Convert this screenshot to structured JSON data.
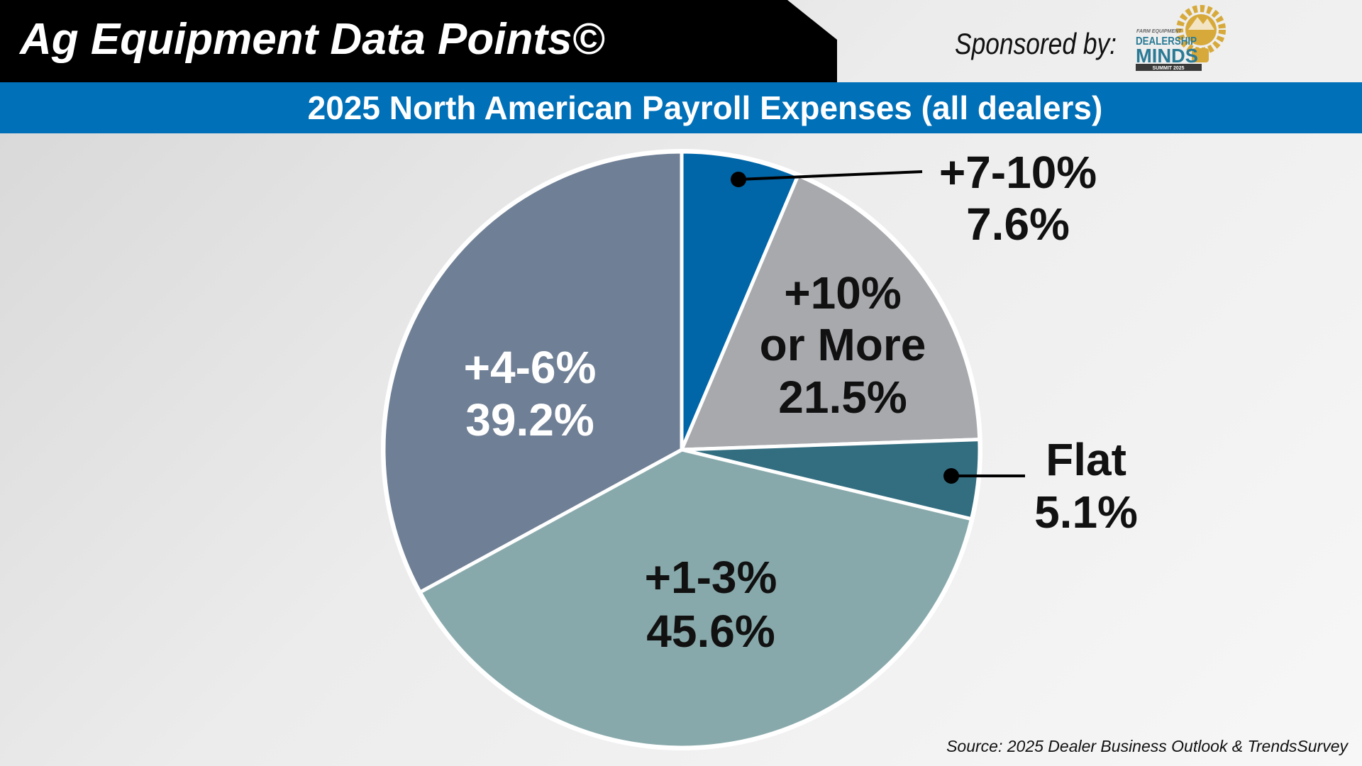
{
  "header": {
    "title": "Ag Equipment Data Points©",
    "sponsored_by": "Sponsored by:",
    "sponsor_logo": {
      "line1": "FARM EQUIPMENT",
      "line2": "DEALERSHIP",
      "line3": "MINDS",
      "line4": "SUMMIT 2025"
    }
  },
  "colors": {
    "header_black": "#000000",
    "banner_blue": "#0070b8"
  },
  "chart_data": {
    "type": "pie",
    "title": "2025 North American Payroll Expenses (all dealers)",
    "slices": [
      {
        "label": "+7-10%",
        "value": 7.6,
        "value_label": "7.6%",
        "color": "#0066a8",
        "text_color": "#111111"
      },
      {
        "label": "+10% or More",
        "label_lines": [
          "+10%",
          "or More"
        ],
        "value": 21.5,
        "value_label": "21.5%",
        "color": "#a7a9ad",
        "text_color": "#111111"
      },
      {
        "label": "Flat",
        "value": 5.1,
        "value_label": "5.1%",
        "color": "#336e80",
        "text_color": "#111111"
      },
      {
        "label": "+1-3%",
        "value": 45.6,
        "value_label": "45.6%",
        "color": "#88a9ab",
        "text_color": "#111111"
      },
      {
        "label": "+4-6%",
        "value": 39.2,
        "value_label": "39.2%",
        "color": "#6f7f95",
        "text_color": "#ffffff"
      }
    ],
    "source": "Source: 2025 Dealer Business Outlook & TrendsSurvey"
  }
}
